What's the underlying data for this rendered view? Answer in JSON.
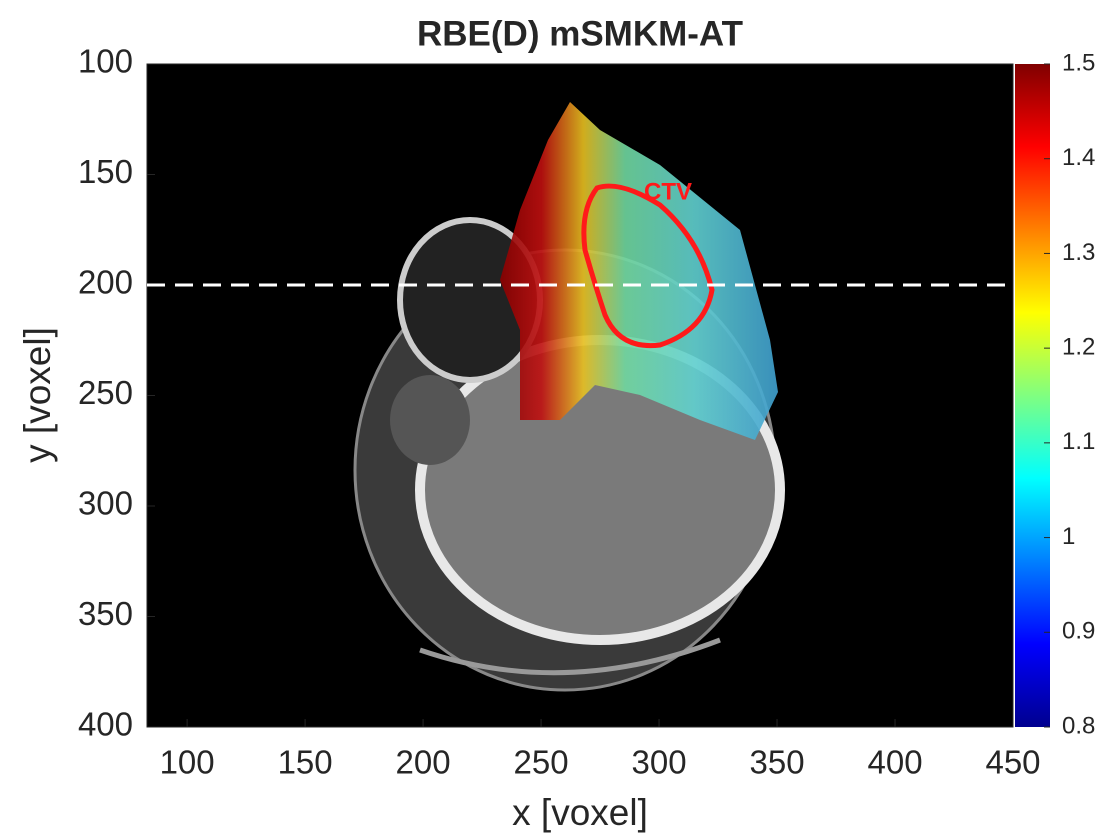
{
  "chart_data": {
    "type": "heatmap",
    "title": "RBE(D) mSMKM-AT",
    "xlabel": "x [voxel]",
    "ylabel": "y [voxel]",
    "xlim": [
      83,
      450
    ],
    "ylim": [
      100,
      400
    ],
    "xticks": [
      100,
      150,
      200,
      250,
      300,
      350,
      400,
      450
    ],
    "yticks": [
      100,
      150,
      200,
      250,
      300,
      350,
      400
    ],
    "y_reversed": true,
    "colormap": "jet",
    "clim": [
      0.8,
      1.5
    ],
    "cticks": [
      0.8,
      0.9,
      1,
      1.1,
      1.2,
      1.3,
      1.4,
      1.5
    ],
    "hline": 200,
    "annotation": "CTV"
  }
}
